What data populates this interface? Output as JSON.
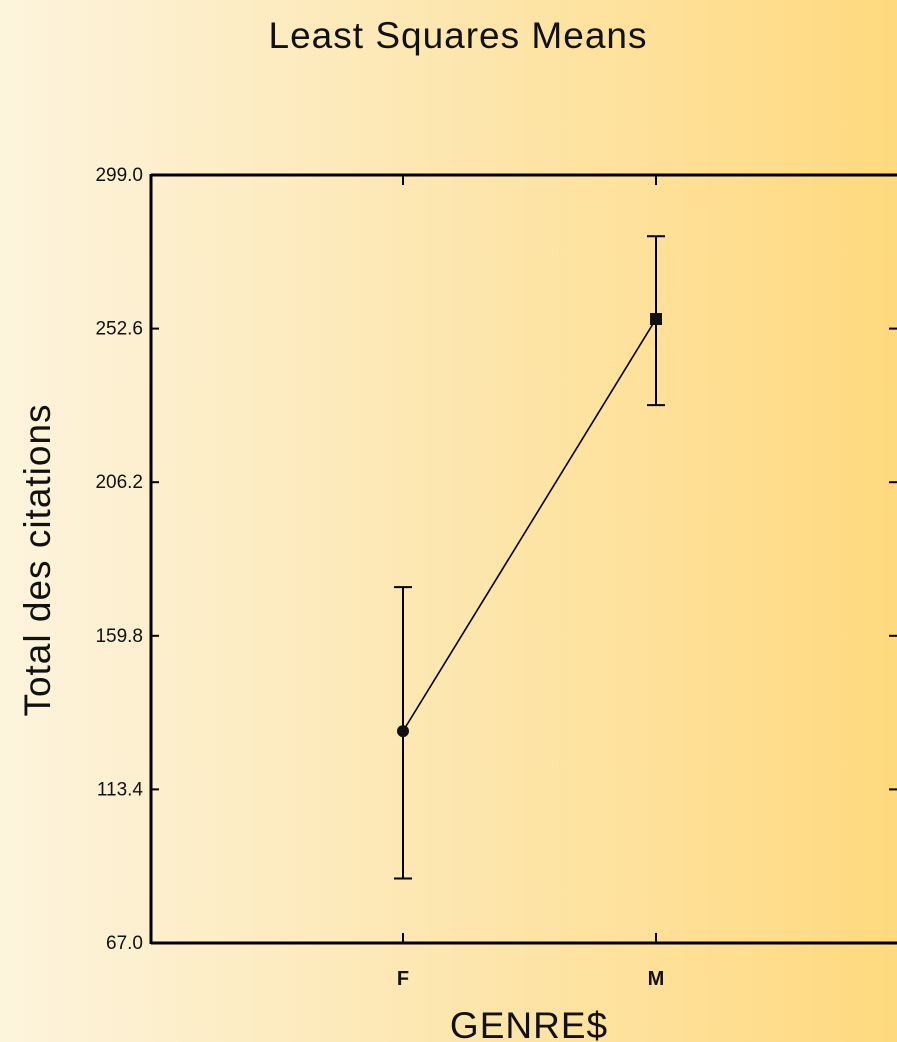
{
  "chart_data": {
    "type": "line",
    "title": "Least Squares Means",
    "xlabel": "GENRE$",
    "ylabel": "Total des citations",
    "categories": [
      "F",
      "M"
    ],
    "series": [
      {
        "values": [
          131.0,
          255.5
        ],
        "lower": [
          86.5,
          229.5
        ],
        "upper": [
          174.5,
          280.5
        ]
      }
    ],
    "yticks": [
      "67.0",
      "113.4",
      "159.8",
      "206.2",
      "252.6",
      "299.0"
    ],
    "ylim": [
      67.0,
      299.0
    ],
    "grid": false,
    "error_bars": true
  }
}
